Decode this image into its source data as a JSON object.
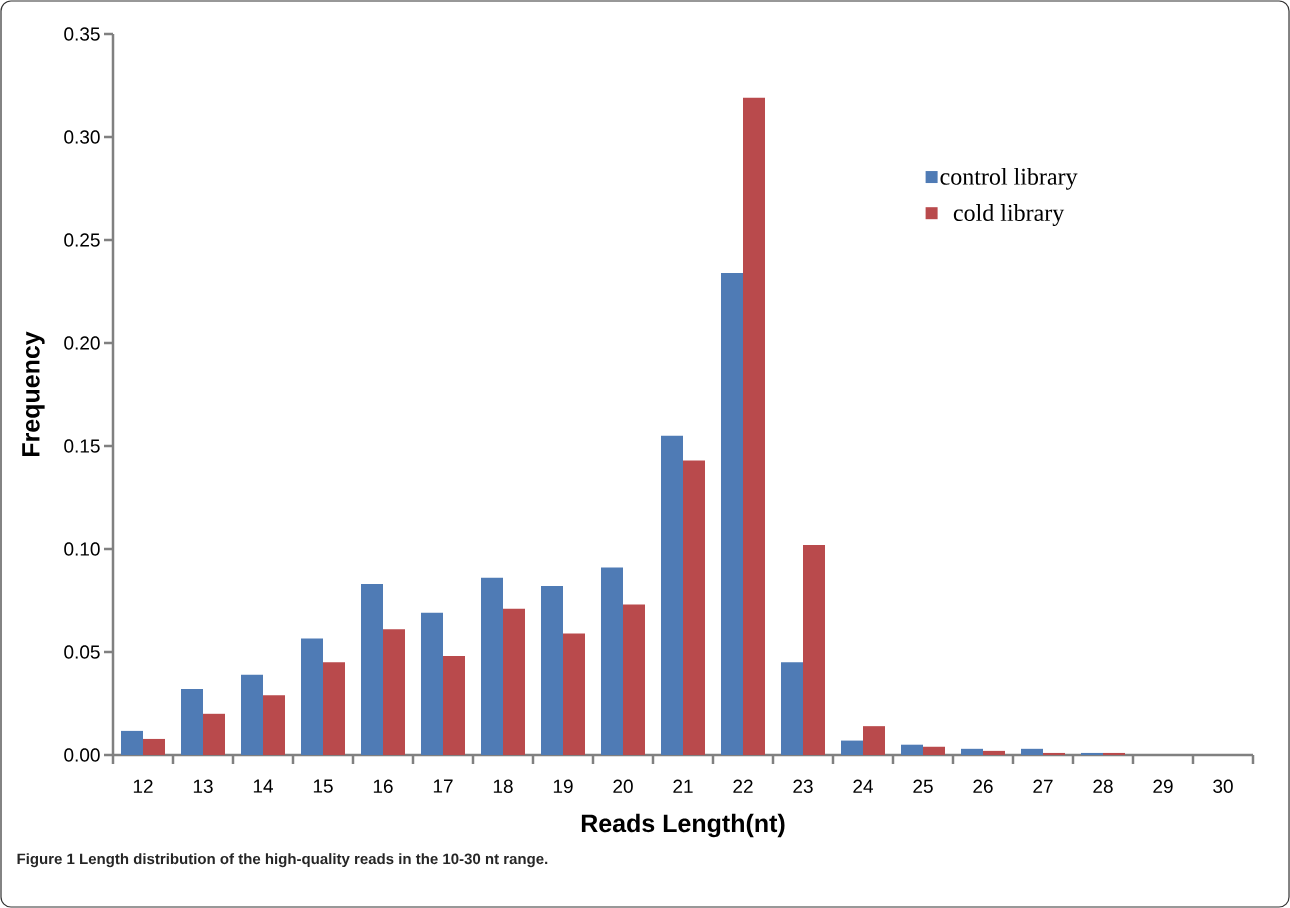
{
  "chart_data": {
    "type": "bar",
    "xlabel": "Reads Length(nt)",
    "ylabel": "Frequency",
    "annotations": [
      "**Figure 1** Length distribution of the high-quality reads in the 10-30 nt range."
    ],
    "categories": [
      "12",
      "13",
      "14",
      "15",
      "16",
      "17",
      "18",
      "19",
      "20",
      "21",
      "22",
      "23",
      "24",
      "25",
      "26",
      "27",
      "28",
      "29",
      "30"
    ],
    "series": [
      {
        "name": "control library",
        "color": "#4f7bb5",
        "values": [
          0.0117,
          0.032,
          0.039,
          0.0565,
          0.083,
          0.069,
          0.086,
          0.082,
          0.091,
          0.155,
          0.234,
          0.045,
          0.007,
          0.005,
          0.003,
          0.003,
          0.001,
          0,
          0
        ]
      },
      {
        "name": "cold library",
        "color": "#b94a4c",
        "values": [
          0.0078,
          0.02,
          0.029,
          0.045,
          0.061,
          0.048,
          0.071,
          0.059,
          0.073,
          0.143,
          0.319,
          0.102,
          0.014,
          0.004,
          0.002,
          0.001,
          0.001,
          0,
          0
        ]
      }
    ],
    "ylim": [
      0,
      0.35
    ],
    "yticks": [
      {
        "value": 0,
        "label": "0.00"
      },
      {
        "value": 0.05,
        "label": "0.05"
      },
      {
        "value": 0.1,
        "label": "0.10"
      },
      {
        "value": 0.15,
        "label": "0.15"
      },
      {
        "value": 0.2,
        "label": "0.20"
      },
      {
        "value": 0.25,
        "label": "0.25"
      },
      {
        "value": 0.3,
        "label": "0.30"
      },
      {
        "value": 0.35,
        "label": "0.35"
      }
    ],
    "grid": false,
    "legend": "top right"
  }
}
